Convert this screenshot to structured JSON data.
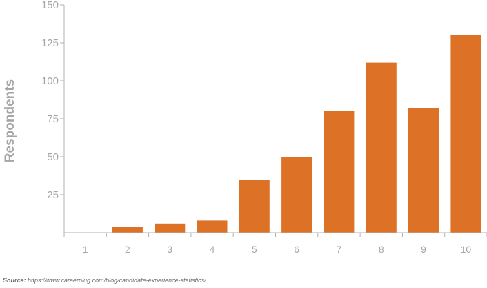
{
  "chart_data": {
    "type": "bar",
    "title": "",
    "xlabel": "",
    "ylabel": "Respondents",
    "categories": [
      "1",
      "2",
      "3",
      "4",
      "5",
      "6",
      "7",
      "8",
      "9",
      "10"
    ],
    "values": [
      0,
      4,
      6,
      8,
      35,
      50,
      80,
      112,
      82,
      130
    ],
    "ylim": [
      0,
      150
    ],
    "yticks": [
      "25",
      "50",
      "75",
      "100",
      "125",
      "150"
    ],
    "grid": false,
    "legend": "none",
    "bar_color": "#dd7226",
    "axis_color": "#b0b0b0"
  },
  "source": {
    "label": "Source:",
    "text": "https://www.careerplug.com/blog/candidate-experience-statistics/"
  }
}
